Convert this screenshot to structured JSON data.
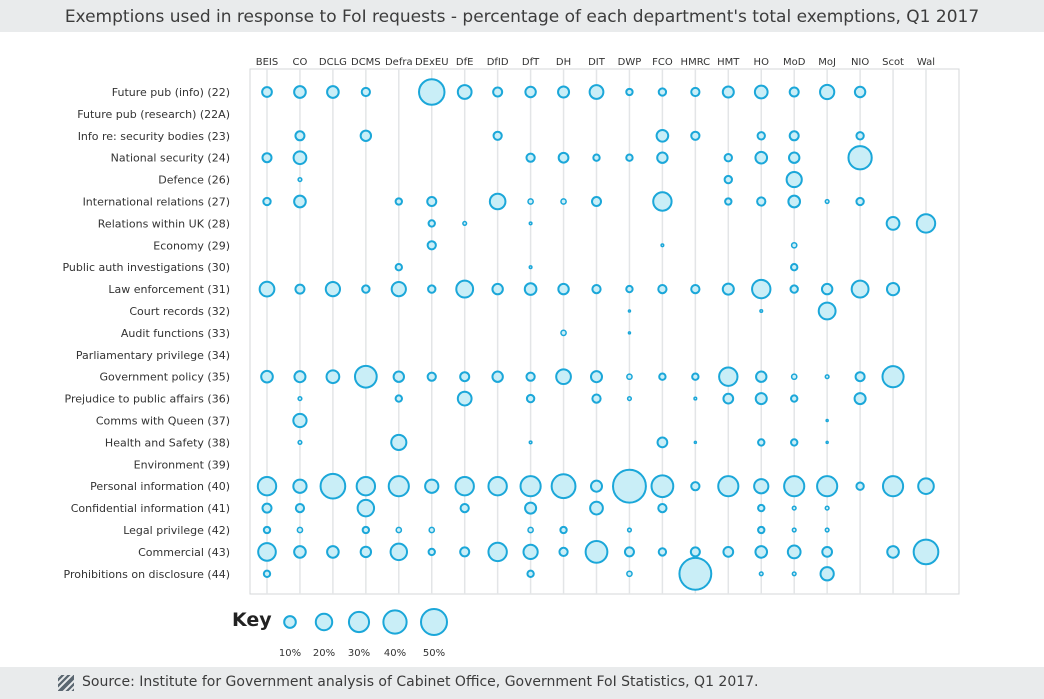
{
  "title": "Exemptions used in response to FoI requests - percentage of each department's total exemptions, Q1 2017",
  "source": "Source: Institute for Government analysis of Cabinet Office, Government FoI Statistics, Q1 2017.",
  "key": {
    "label": "Key",
    "items": [
      {
        "label": "10%",
        "value": 10
      },
      {
        "label": "20%",
        "value": 20
      },
      {
        "label": "30%",
        "value": 30
      },
      {
        "label": "40%",
        "value": 40
      },
      {
        "label": "50%",
        "value": 50
      }
    ]
  },
  "colors": {
    "stroke": "#1ba7d9",
    "fill": "#c9eef7",
    "gridline": "#e3e5e7",
    "frame": "#d4d7da",
    "header_bg": "#e9ebec"
  },
  "icons": {
    "source": "hatched-square-icon"
  },
  "chart_data": {
    "type": "bubble",
    "departments": [
      "BEIS",
      "CO",
      "DCLG",
      "DCMS",
      "Defra",
      "DExEU",
      "DfE",
      "DfID",
      "DfT",
      "DH",
      "DIT",
      "DWP",
      "FCO",
      "HMRC",
      "HMT",
      "HO",
      "MoD",
      "MoJ",
      "NIO",
      "Scot",
      "Wal"
    ],
    "exemptions": [
      "Future pub (info) (22)",
      "Future pub (research) (22A)",
      "Info re: security bodies (23)",
      "National security (24)",
      "Defence (26)",
      "International relations (27)",
      "Relations within UK (28)",
      "Economy (29)",
      "Public auth investigations (30)",
      "Law enforcement (31)",
      "Court records (32)",
      "Audit functions (33)",
      "Parliamentary privilege (34)",
      "Government policy (35)",
      "Prejudice to public affairs (36)",
      "Comms with Queen (37)",
      "Health and Safety (38)",
      "Environment (39)",
      "Personal information (40)",
      "Confidential information (41)",
      "Legal privilege (42)",
      "Commercial (43)",
      "Prohibitions on disclosure (44)"
    ],
    "values": [
      [
        7,
        10,
        10,
        5,
        0,
        48,
        14,
        6,
        8,
        9,
        14,
        3,
        4,
        5,
        9,
        12,
        6,
        15,
        8,
        0,
        0
      ],
      [
        0,
        0,
        0,
        0,
        0,
        0,
        0,
        0,
        0,
        0,
        0,
        0,
        0,
        0,
        0,
        0,
        0,
        0,
        0,
        0,
        0
      ],
      [
        0,
        6,
        0,
        8,
        0,
        0,
        0,
        5,
        0,
        0,
        0,
        0,
        10,
        5,
        0,
        4,
        6,
        0,
        4,
        0,
        0
      ],
      [
        6,
        12,
        0,
        0,
        0,
        0,
        0,
        0,
        5,
        7,
        3,
        3,
        8,
        0,
        4,
        10,
        8,
        0,
        40,
        0,
        0
      ],
      [
        0,
        1,
        0,
        0,
        0,
        0,
        0,
        0,
        0,
        0,
        0,
        0,
        0,
        0,
        4,
        0,
        17,
        0,
        0,
        0,
        0
      ],
      [
        4,
        10,
        0,
        0,
        3,
        6,
        0,
        18,
        2,
        2,
        6,
        0,
        25,
        0,
        3,
        5,
        10,
        1,
        4,
        0,
        0
      ],
      [
        0,
        0,
        0,
        0,
        0,
        3,
        1,
        0,
        0.5,
        0,
        0,
        0,
        0,
        0,
        0,
        0,
        0,
        0,
        0,
        12,
        25
      ],
      [
        0,
        0,
        0,
        0,
        0,
        5,
        0,
        0,
        0,
        0,
        0,
        0,
        0.5,
        0,
        0,
        0,
        2,
        0,
        0,
        0,
        0
      ],
      [
        0,
        0,
        0,
        0,
        3,
        0,
        0,
        0,
        0.5,
        0,
        0,
        0,
        0,
        0,
        0,
        0,
        3,
        0,
        0,
        0,
        0
      ],
      [
        16,
        6,
        15,
        4,
        15,
        4,
        21,
        8,
        10,
        8,
        5,
        3,
        5,
        5,
        9,
        25,
        4,
        8,
        21,
        11,
        0
      ],
      [
        0,
        0,
        0,
        0,
        0,
        0,
        0,
        0,
        0,
        0,
        0,
        0.3,
        0,
        0,
        0,
        0.5,
        0,
        21,
        0,
        0,
        0
      ],
      [
        0,
        0,
        0,
        0,
        0,
        0,
        0,
        0,
        0,
        2,
        0,
        0.3,
        0,
        0,
        0,
        0,
        0,
        0,
        0,
        0,
        0
      ],
      [
        0,
        0,
        0,
        0,
        0,
        0,
        0,
        0,
        0,
        0,
        0,
        0,
        0,
        0,
        0,
        0,
        0,
        0,
        0,
        0,
        0
      ],
      [
        10,
        9,
        12,
        35,
        8,
        5,
        6,
        8,
        5,
        16,
        9,
        2,
        3,
        3,
        25,
        8,
        2,
        1,
        6,
        33,
        0
      ],
      [
        0,
        1,
        0,
        0,
        3,
        0,
        14,
        0,
        4,
        0,
        5,
        1,
        0,
        0.5,
        7,
        9,
        3,
        0,
        9,
        0,
        0
      ],
      [
        0,
        13,
        0,
        0,
        0,
        0,
        0,
        0,
        0,
        0,
        0,
        0,
        0,
        0,
        0,
        0,
        0,
        0.3,
        0,
        0,
        0
      ],
      [
        0,
        1,
        0,
        0,
        17,
        0,
        0,
        0,
        0.5,
        0,
        0,
        0,
        7,
        0.3,
        0,
        3,
        3,
        0.3,
        0,
        0,
        0
      ],
      [
        0,
        0,
        0,
        0,
        0,
        0,
        0,
        0,
        0,
        0,
        0,
        0,
        0,
        0,
        0,
        0,
        0,
        0,
        0,
        0,
        0
      ],
      [
        25,
        13,
        45,
        25,
        30,
        13,
        25,
        25,
        30,
        42,
        9,
        80,
        35,
        5,
        30,
        15,
        30,
        30,
        4,
        30,
        18
      ],
      [
        6,
        5,
        0,
        20,
        0,
        0,
        5,
        0,
        9,
        0,
        12,
        0,
        5,
        0,
        0,
        3,
        1,
        1,
        0,
        0,
        0
      ],
      [
        3,
        2,
        0,
        3,
        2,
        2,
        0,
        0,
        2,
        3,
        0,
        1,
        0,
        0,
        0,
        3,
        1,
        1,
        0,
        0,
        0
      ],
      [
        23,
        10,
        10,
        8,
        20,
        3,
        6,
        25,
        15,
        5,
        35,
        6,
        4,
        6,
        7,
        10,
        12,
        7,
        0,
        10,
        45
      ],
      [
        3,
        0,
        0,
        0,
        0,
        0,
        0,
        0,
        3,
        0,
        0,
        2,
        0,
        75,
        0,
        1,
        1,
        13,
        0,
        0,
        0
      ]
    ]
  }
}
